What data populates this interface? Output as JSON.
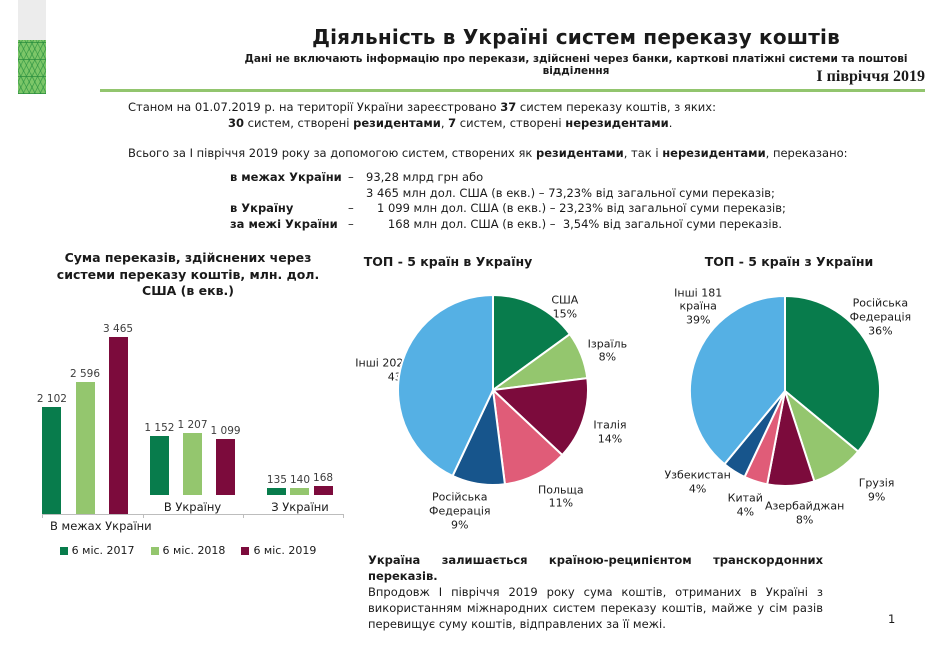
{
  "page": {
    "number": "1"
  },
  "header": {
    "title": "Діяльність в Україні систем переказу коштів",
    "subtitle": "Дані не включають інформацію про перекази, здійснені через банки, карткові платіжні системи та поштові відділення",
    "period": "І півріччя 2019"
  },
  "intro": {
    "line1": [
      {
        "t": "Станом на 01.07.2019 р. на території України зареєстровано "
      },
      {
        "t": "37",
        "b": true
      },
      {
        "t": " систем переказу коштів, з яких:"
      }
    ],
    "line2": [
      {
        "t": "30",
        "b": true
      },
      {
        "t": " систем, створені "
      },
      {
        "t": "резидентами",
        "b": true
      },
      {
        "t": ", "
      },
      {
        "t": "7",
        "b": true
      },
      {
        "t": " систем, створені "
      },
      {
        "t": "нерезидентами",
        "b": true
      },
      {
        "t": "."
      }
    ],
    "line3": [
      {
        "t": "Всього за І півріччя 2019 року за допомогою систем, створених як "
      },
      {
        "t": "резидентами",
        "b": true
      },
      {
        "t": ", так і "
      },
      {
        "t": "нерезидентами",
        "b": true
      },
      {
        "t": ", переказано:"
      }
    ]
  },
  "transfers": {
    "rows": [
      {
        "label": "в межах України",
        "dash": "–",
        "lines": [
          "93,28 млрд грн або",
          "3 465 млн дол. США (в екв.) – 73,23% від загальної суми переказів;"
        ]
      },
      {
        "label": "в Україну",
        "dash": "–",
        "lines": [
          "   1 099 млн дол. США (в екв.) – 23,23% від загальної суми переказів;"
        ]
      },
      {
        "label": "за межі України",
        "dash": "–",
        "lines": [
          "      168 млн дол. США (в екв.) –  3,54% від загальної суми переказів."
        ]
      }
    ]
  },
  "chart_data": [
    {
      "type": "bar",
      "title": "Сума переказів, здійснених через системи переказу коштів, млн. дол. США (в екв.)",
      "categories": [
        "В межах України",
        "В Україну",
        "З України"
      ],
      "series": [
        {
          "name": "6 міс. 2017",
          "color": "#087c4c",
          "values": [
            2102,
            1152,
            135
          ],
          "labels": [
            "2 102",
            "1 152",
            "135"
          ]
        },
        {
          "name": "6 міс. 2018",
          "color": "#94c66e",
          "values": [
            2596,
            1207,
            140
          ],
          "labels": [
            "2 596",
            "1 207",
            "140"
          ]
        },
        {
          "name": "6 міс. 2019",
          "color": "#7c0b3c",
          "values": [
            3465,
            1099,
            168
          ],
          "labels": [
            "3 465",
            "1 099",
            "168"
          ]
        }
      ],
      "ylim": [
        0,
        3600
      ],
      "grid": false,
      "legend_position": "bottom"
    },
    {
      "type": "pie",
      "title": "ТОП - 5 країн в Україну",
      "start_angle_deg": 0,
      "direction": "clockwise",
      "slices": [
        {
          "label": "США",
          "pct": 15,
          "color": "#087c4c"
        },
        {
          "label": "Ізраїль",
          "pct": 8,
          "color": "#94c66e"
        },
        {
          "label": "Італія",
          "pct": 14,
          "color": "#7c0b3c"
        },
        {
          "label": "Польща",
          "pct": 11,
          "color": "#e05c78"
        },
        {
          "label": "Російська Федерація",
          "pct": 9,
          "color": "#17558c"
        },
        {
          "label": "Інші 202 країни",
          "pct": 43,
          "color": "#55b0e4"
        }
      ]
    },
    {
      "type": "pie",
      "title": "ТОП - 5 країн з України",
      "start_angle_deg": 0,
      "direction": "clockwise",
      "slices": [
        {
          "label": "Російська Федерація",
          "pct": 36,
          "color": "#087c4c"
        },
        {
          "label": "Грузія",
          "pct": 9,
          "color": "#94c66e"
        },
        {
          "label": "Азербайджан",
          "pct": 8,
          "color": "#7c0b3c"
        },
        {
          "label": "Китай",
          "pct": 4,
          "color": "#e05c78"
        },
        {
          "label": "Узбекистан",
          "pct": 4,
          "color": "#17558c"
        },
        {
          "label": "Інші 181 країна",
          "pct": 39,
          "color": "#55b0e4"
        }
      ]
    }
  ],
  "footer_note": {
    "bold": "Україна залишається країною-реципієнтом транскордонних переказів.",
    "text": "Впродовж І півріччя 2019 року сума коштів, отриманих в Україні з використанням міжнародних систем переказу коштів, майже у сім разів перевищує суму коштів, відправлених за її межі."
  },
  "colors": {
    "green_dark": "#087c4c",
    "green_light": "#94c66e",
    "maroon": "#7c0b3c",
    "rose": "#e05c78",
    "blue_dark": "#17558c",
    "blue_light": "#55b0e4",
    "rule_green": "#92c56e"
  }
}
